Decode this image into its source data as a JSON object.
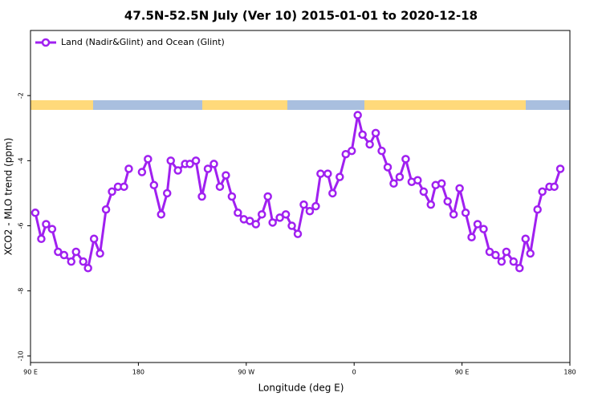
{
  "chart_data": {
    "type": "line",
    "title": "47.5N-52.5N July (Ver 10)   2015-01-01 to 2020-12-18",
    "x_label": "Longitude (deg E)",
    "y_label": "XCO2 - MLO trend (ppm)",
    "xlim": [
      90,
      540
    ],
    "xticks": [
      {
        "value": 90,
        "label": "90 E"
      },
      {
        "value": 180,
        "label": "180"
      },
      {
        "value": 270,
        "label": "90 W"
      },
      {
        "value": 360,
        "label": "0"
      },
      {
        "value": 450,
        "label": "90 E"
      },
      {
        "value": 540,
        "label": "180"
      }
    ],
    "ylim": [
      -10.2,
      0
    ],
    "yticks": [
      -10,
      -8,
      -6,
      -4,
      -2
    ],
    "legend": "top-left",
    "x": [
      94,
      99,
      103,
      108,
      113,
      118,
      124,
      128,
      134,
      138,
      143,
      148,
      153,
      158,
      163,
      168,
      172,
      177,
      183,
      188,
      193,
      199,
      204,
      207,
      213,
      219,
      223,
      228,
      233,
      238,
      243,
      248,
      253,
      258,
      263,
      268,
      273,
      278,
      283,
      288,
      292,
      298,
      303,
      308,
      313,
      318,
      323,
      328,
      332,
      338,
      342,
      348,
      353,
      358,
      363,
      367,
      373,
      378,
      383,
      388,
      393,
      398,
      403,
      408,
      413,
      418,
      424,
      428,
      433,
      438,
      443,
      448,
      453,
      458,
      463,
      468,
      473,
      478,
      483,
      487,
      493,
      498,
      503,
      507,
      513,
      517,
      523,
      527,
      532
    ],
    "series": [
      {
        "name": "Land (Nadir&Glint) and Ocean (Glint)",
        "color": "#a020f0",
        "values": [
          -5.6,
          -6.4,
          -5.95,
          -6.1,
          -6.8,
          -6.9,
          -7.1,
          -6.8,
          -7.1,
          -7.3,
          -6.4,
          -6.85,
          -5.5,
          -4.95,
          -4.8,
          -4.8,
          -4.25,
          null,
          -4.35,
          -3.95,
          -4.75,
          -5.65,
          -5.0,
          -4.0,
          -4.3,
          -4.1,
          -4.1,
          -4.0,
          -5.1,
          -4.25,
          -4.1,
          -4.8,
          -4.45,
          -5.1,
          -5.6,
          -5.8,
          -5.85,
          -5.95,
          -5.65,
          -5.1,
          -5.9,
          -5.75,
          -5.65,
          -6.0,
          -6.25,
          -5.35,
          -5.55,
          -5.4,
          -4.4,
          -4.4,
          -5.0,
          -4.5,
          -3.8,
          -3.7,
          -2.6,
          -3.2,
          -3.5,
          -3.15,
          -3.7,
          -4.2,
          -4.7,
          -4.5,
          -3.95,
          -4.65,
          -4.6,
          -4.95,
          -5.35,
          -4.75,
          -4.7,
          -5.25,
          -5.65,
          -4.85,
          -5.6,
          -6.35,
          -5.95,
          -6.1,
          -6.8,
          -6.9,
          -7.1,
          -6.8,
          -7.1,
          -7.3,
          -6.4,
          -6.85,
          -5.5,
          -4.95,
          -4.8,
          -4.8,
          -4.25
        ]
      }
    ]
  }
}
